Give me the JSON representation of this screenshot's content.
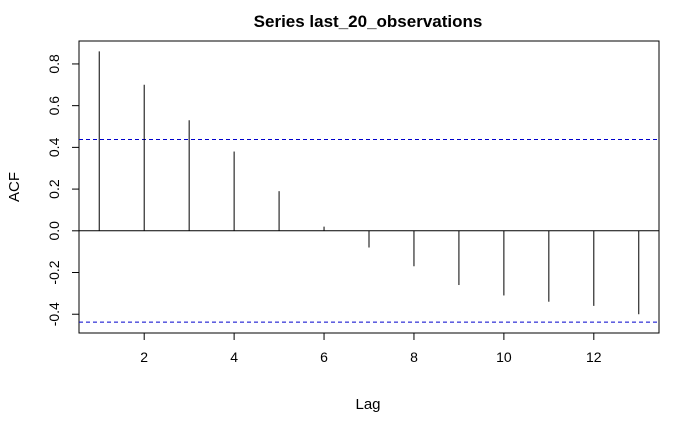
{
  "chart_data": {
    "type": "bar",
    "title": "Series last_20_observations",
    "xlabel": "Lag",
    "ylabel": "ACF",
    "x": [
      1,
      2,
      3,
      4,
      5,
      6,
      7,
      8,
      9,
      10,
      11,
      12,
      13
    ],
    "values": [
      0.86,
      0.7,
      0.53,
      0.38,
      0.19,
      0.02,
      -0.08,
      -0.17,
      -0.26,
      -0.31,
      -0.34,
      -0.36,
      -0.4
    ],
    "confidence_bounds": [
      -0.438,
      0.438
    ],
    "xlim": [
      0.55,
      13.45
    ],
    "ylim": [
      -0.49,
      0.91
    ],
    "xticks": [
      2,
      4,
      6,
      8,
      10,
      12
    ],
    "yticks": [
      -0.4,
      -0.2,
      0.0,
      0.2,
      0.4,
      0.6,
      0.8
    ],
    "ytick_labels": [
      "-0.4",
      "-0.2",
      "0.0",
      "0.2",
      "0.4",
      "0.6",
      "0.8"
    ],
    "grid": false,
    "colors": {
      "bars": "#000000",
      "zero_line": "#000000",
      "confidence_lines": "#0000cc",
      "frame": "#000000"
    }
  }
}
